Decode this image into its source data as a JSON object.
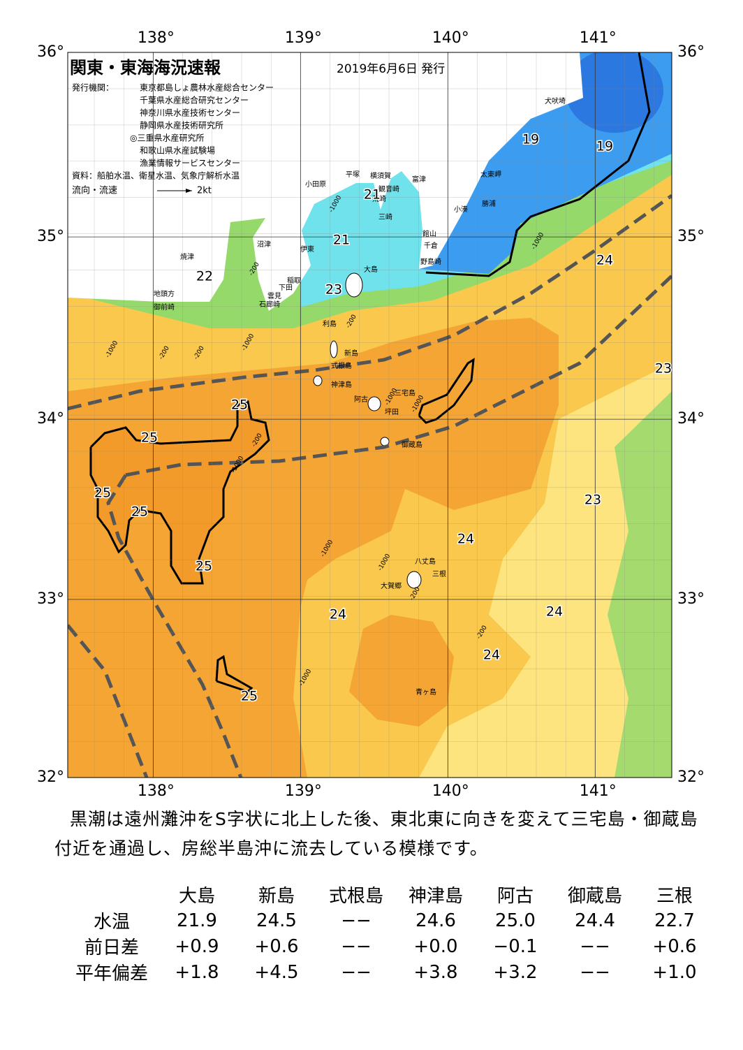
{
  "header": {
    "title": "関東・東海海況速報",
    "date": "2019年6月6日 発行",
    "issuer_label": "発行機関：",
    "issuers": [
      "東京都島しょ農林水産総合センター",
      "千葉県水産総合研究センター",
      "神奈川県水産技術センター",
      "静岡県水産技術研究所",
      "◎三重県水産研究所",
      "和歌山県水産試験場",
      "漁業情報サービスセンター"
    ],
    "sources": "資料：船舶水温、衛星水温、気象庁解析水温",
    "current_label": "流向・流速",
    "current_scale": "2kt"
  },
  "map": {
    "lon_range": [
      137.42,
      141.52
    ],
    "lat_range": [
      32,
      36
    ],
    "lon_ticks": [
      {
        "value": 138,
        "label": "138°"
      },
      {
        "value": 139,
        "label": "139°"
      },
      {
        "value": 140,
        "label": "140°"
      },
      {
        "value": 141,
        "label": "141°"
      }
    ],
    "lat_ticks": [
      {
        "value": 36,
        "label": "36°"
      },
      {
        "value": 35,
        "label": "35°"
      },
      {
        "value": 34,
        "label": "34°"
      },
      {
        "value": 33,
        "label": "33°"
      },
      {
        "value": 32,
        "label": "32°"
      }
    ],
    "places": [
      "犬吠埼",
      "太東岬",
      "勝浦",
      "小湊",
      "富津",
      "横須賀",
      "観音崎",
      "平塚",
      "小田原",
      "荒崎",
      "三崎",
      "館山",
      "千倉",
      "野島崎",
      "沼津",
      "伊東",
      "大島",
      "焼津",
      "稲取",
      "下田",
      "雲見",
      "石廊崎",
      "地頭方",
      "御前崎",
      "利島",
      "新島",
      "式根島",
      "神津島",
      "三宅島",
      "阿古",
      "坪田",
      "御蔵島",
      "八丈島",
      "三根",
      "大賀郷",
      "青ヶ島"
    ],
    "temperature_labels": [
      19,
      19,
      21,
      21,
      22,
      23,
      24,
      23,
      25,
      25,
      25,
      25,
      25,
      24,
      23,
      24,
      24,
      24,
      25
    ],
    "depth_labels": [
      "-200",
      "-1000",
      "-1000",
      "-200",
      "-200",
      "-1000",
      "-200",
      "-1000",
      "-200",
      "-1000",
      "-1000",
      "-1000",
      "-1000",
      "-1000",
      "-200",
      "-1000",
      "-200"
    ]
  },
  "summary": "黒潮は遠州灘沖をS字状に北上した後、東北東に向きを変えて三宅島・御蔵島付近を通過し、房総半島沖に流去している模様です。",
  "table": {
    "columns": [
      "大島",
      "新島",
      "式根島",
      "神津島",
      "阿古",
      "御蔵島",
      "三根"
    ],
    "rows": [
      {
        "label": "水温",
        "values": [
          "21.9",
          "24.5",
          "−−",
          "24.6",
          "25.0",
          "24.4",
          "22.7"
        ]
      },
      {
        "label": "前日差",
        "values": [
          "+0.9",
          "+0.6",
          "−−",
          "+0.0",
          "−0.1",
          "−−",
          "+0.6"
        ]
      },
      {
        "label": "平年偏差",
        "values": [
          "+1.8",
          "+4.5",
          "−−",
          "+3.8",
          "+3.2",
          "−−",
          "+1.0"
        ]
      }
    ]
  }
}
